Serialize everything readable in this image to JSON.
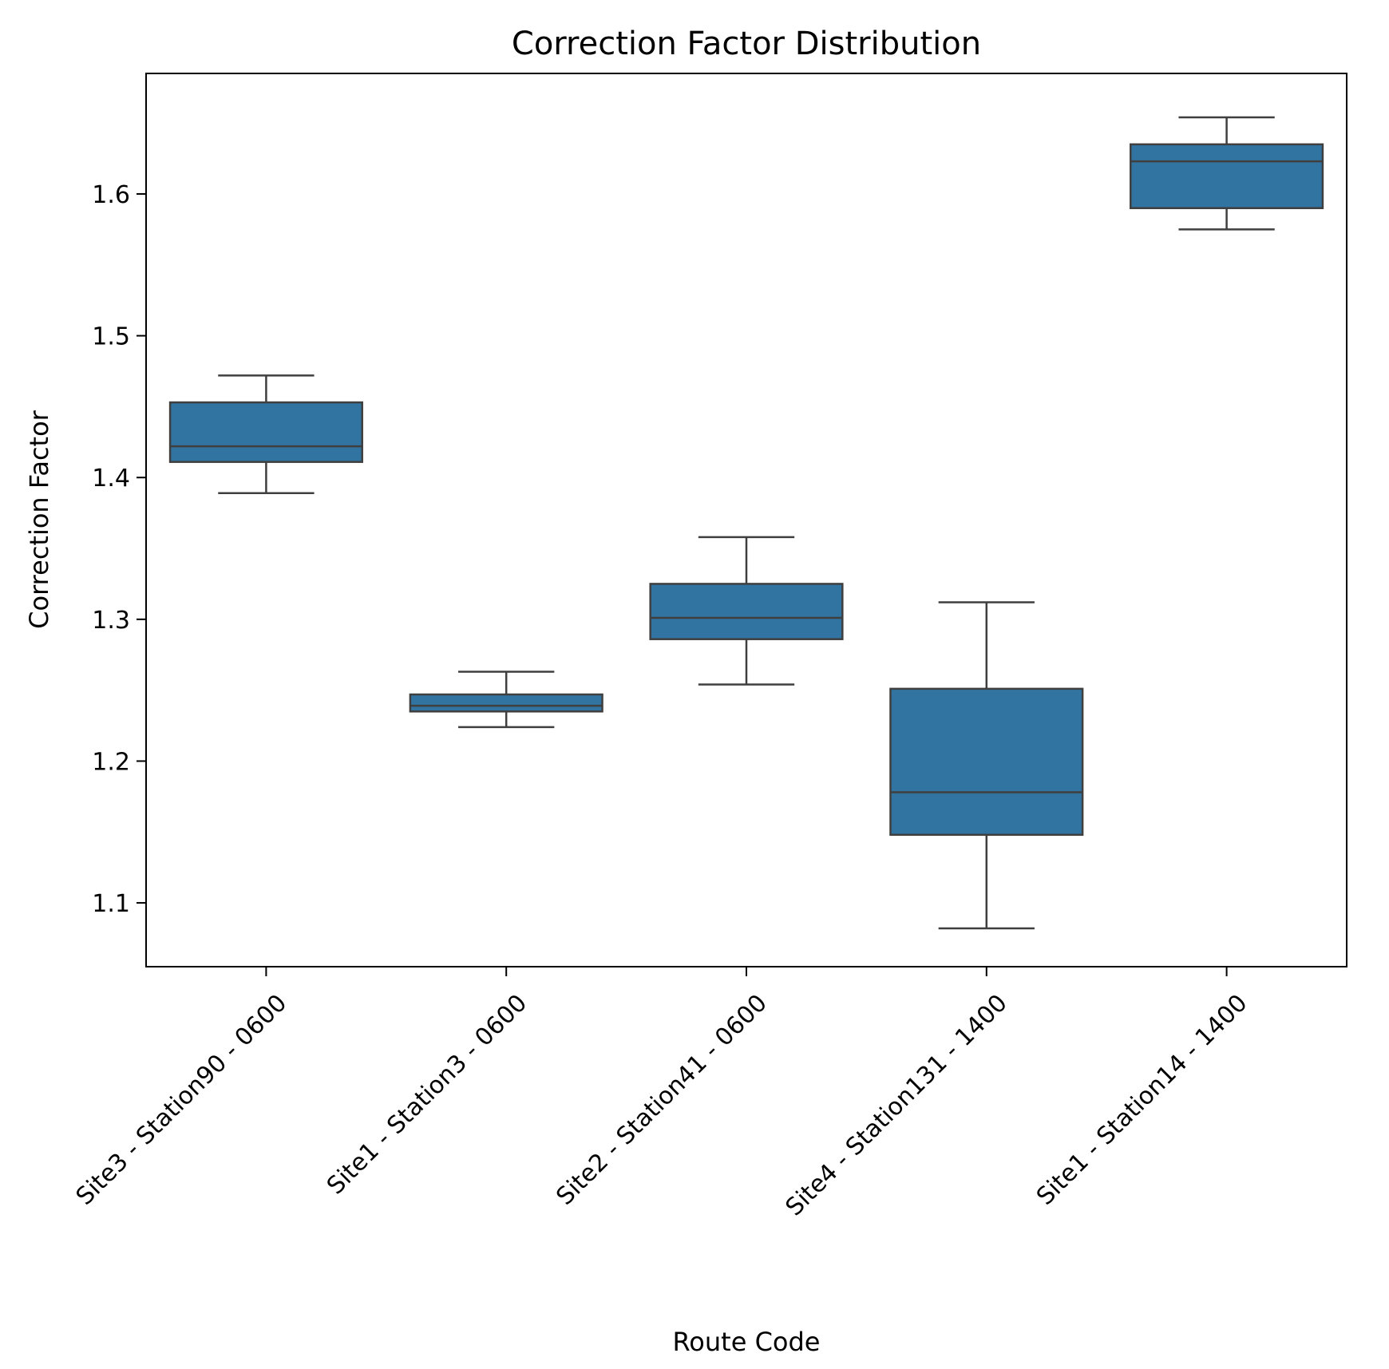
{
  "chart_data": {
    "type": "box",
    "title": "Correction Factor Distribution",
    "xlabel": "Route Code",
    "ylabel": "Correction Factor",
    "ylim": [
      1.055,
      1.685
    ],
    "yticks": [
      1.1,
      1.2,
      1.3,
      1.4,
      1.5,
      1.6
    ],
    "ytick_labels": [
      "1.1",
      "1.2",
      "1.3",
      "1.4",
      "1.5",
      "1.6"
    ],
    "grid": false,
    "box_color": "#3274a1",
    "line_color": "#3f3f3f",
    "categories": [
      "Site3 - Station90 - 0600",
      "Site1 - Station3 - 0600",
      "Site2 - Station41 - 0600",
      "Site4 - Station131 - 1400",
      "Site1 - Station14 - 1400"
    ],
    "boxes": [
      {
        "whislo": 1.389,
        "q1": 1.411,
        "median": 1.422,
        "q3": 1.453,
        "whishi": 1.472
      },
      {
        "whislo": 1.224,
        "q1": 1.235,
        "median": 1.239,
        "q3": 1.247,
        "whishi": 1.263
      },
      {
        "whislo": 1.254,
        "q1": 1.286,
        "median": 1.301,
        "q3": 1.325,
        "whishi": 1.358
      },
      {
        "whislo": 1.082,
        "q1": 1.148,
        "median": 1.178,
        "q3": 1.251,
        "whishi": 1.312
      },
      {
        "whislo": 1.575,
        "q1": 1.59,
        "median": 1.623,
        "q3": 1.635,
        "whishi": 1.654
      }
    ]
  }
}
